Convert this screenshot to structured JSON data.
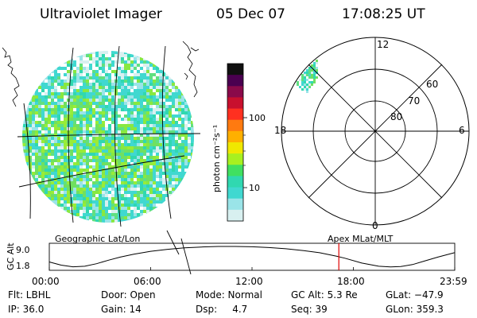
{
  "header": {
    "title": "Ultraviolet Imager",
    "date": "05 Dec 07",
    "time": "17:08:25 UT"
  },
  "colorbar": {
    "label": "photon cm⁻²s⁻¹",
    "ticks": [
      "100",
      "10"
    ],
    "colors": [
      "#101010",
      "#4a0050",
      "#8a0a4a",
      "#c8102e",
      "#ff3020",
      "#ff7a10",
      "#ffb000",
      "#f0e800",
      "#a8f020",
      "#40e060",
      "#30d8b0",
      "#40d8d0",
      "#9ae4e8",
      "#d8f0f0"
    ]
  },
  "polar": {
    "mlt_labels": [
      "12",
      "18",
      "6",
      "0"
    ],
    "lat_labels": [
      "60",
      "70",
      "80"
    ]
  },
  "panel_labels": {
    "left": "Geographic Lat/Lon",
    "right": "Apex MLat/MLT"
  },
  "chart_data": {
    "type": "line",
    "title": "GC Alt",
    "ylabel": "GC Alt",
    "yticks": [
      "9.0",
      "1.8"
    ],
    "ylim": [
      1.8,
      9.0
    ],
    "xlim": [
      0,
      24
    ],
    "xticks": [
      "00:00",
      "06:00",
      "12:00",
      "18:00",
      "23:59"
    ],
    "series": [
      {
        "name": "GC Alt (Re)",
        "x": [
          0,
          0.7,
          1.4,
          2.1,
          2.8,
          3.5,
          4.2,
          5.0,
          6.0,
          7.0,
          8.0,
          9.0,
          10.0,
          11.0,
          12.0,
          13.0,
          14.0,
          15.0,
          16.0,
          17.0,
          17.5,
          18.5,
          19.5,
          20.2,
          20.8,
          21.5,
          22.2,
          23.0,
          23.98
        ],
        "values": [
          3.6,
          2.5,
          1.9,
          2.1,
          3.0,
          4.2,
          5.3,
          6.3,
          7.3,
          8.0,
          8.5,
          8.8,
          9.0,
          9.0,
          8.9,
          8.6,
          8.2,
          7.6,
          6.8,
          5.6,
          4.9,
          3.2,
          2.1,
          1.85,
          2.0,
          2.7,
          3.9,
          5.3,
          6.8
        ]
      }
    ],
    "marker_time": 17.14
  },
  "footer": {
    "row1": [
      "Flt: LBHL",
      "Door: Open",
      "Mode: Normal",
      "GC Alt: 5.3 Re",
      "GLat: −47.9"
    ],
    "row2": [
      "IP: 36.0",
      "Gain: 14",
      "Dsp:     4.7",
      "Seq: 39",
      "GLon: 359.3"
    ]
  }
}
